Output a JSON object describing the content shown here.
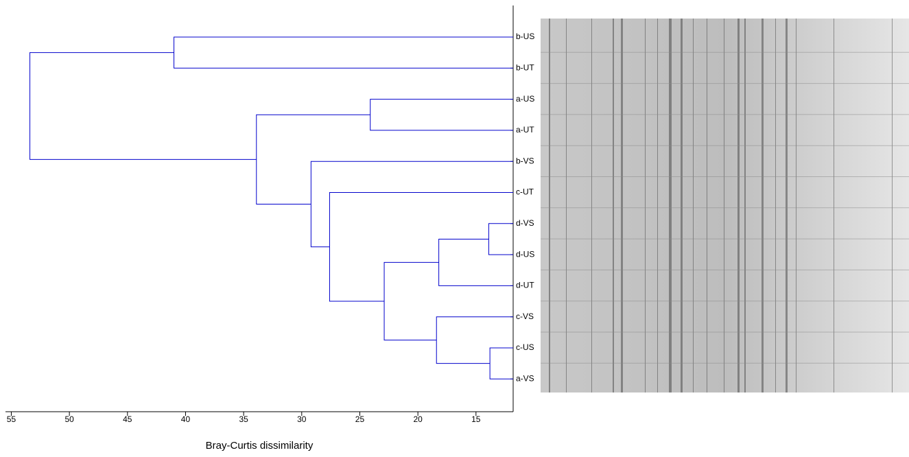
{
  "chart_data": {
    "type": "dendrogram",
    "x_label": "Bray-Curtis dissimilarity",
    "xlim": [
      55.5,
      11.8
    ],
    "xticks": [
      55,
      50,
      45,
      40,
      35,
      30,
      25,
      20,
      15
    ],
    "color": "#0000cc",
    "tree": {
      "height": 53.4,
      "children": [
        {
          "height": 41.0,
          "children": [
            "b-US",
            "b-UT"
          ]
        },
        {
          "height": 33.9,
          "children": [
            {
              "height": 24.1,
              "children": [
                "a-US",
                "a-UT"
              ]
            },
            {
              "height": 29.2,
              "children": [
                "b-VS",
                {
                  "height": 27.6,
                  "children": [
                    "c-UT",
                    {
                      "height": 22.9,
                      "children": [
                        {
                          "height": 18.2,
                          "children": [
                            {
                              "height": 13.9,
                              "children": [
                                "d-VS",
                                "d-US"
                              ]
                            },
                            "d-UT"
                          ]
                        },
                        {
                          "height": 18.4,
                          "children": [
                            "c-VS",
                            {
                              "height": 13.8,
                              "children": [
                                "c-US",
                                "a-VS"
                              ]
                            }
                          ]
                        }
                      ]
                    }
                  ]
                }
              ]
            }
          ]
        }
      ]
    }
  }
}
